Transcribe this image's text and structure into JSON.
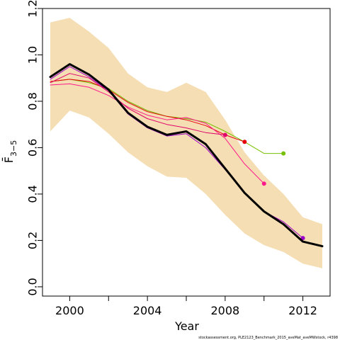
{
  "chart_data": {
    "type": "line",
    "xlabel": "Year",
    "ylabel": "F̄",
    "ylabel_sub": "3−5",
    "xlim": [
      1998.6,
      2013.4
    ],
    "ylim": [
      -0.04,
      1.2
    ],
    "x_ticks": [
      2000,
      2004,
      2008,
      2012
    ],
    "x_tick_labels": [
      "2000",
      "2004",
      "2008",
      "2012"
    ],
    "x_minor_ticks": [
      2002,
      2006,
      2010
    ],
    "y_ticks": [
      0.0,
      0.2,
      0.4,
      0.6,
      0.8,
      1.0,
      1.2
    ],
    "y_tick_labels": [
      "0.0",
      "0.2",
      "0.4",
      "0.6",
      "0.8",
      "1.0",
      "1.2"
    ],
    "confidence_band": {
      "color": "#f5deb3",
      "x": [
        1999,
        2000,
        2001,
        2002,
        2003,
        2004,
        2005,
        2006,
        2007,
        2008,
        2009,
        2010,
        2011,
        2012,
        2013
      ],
      "upper": [
        1.14,
        1.16,
        1.1,
        1.03,
        0.92,
        0.86,
        0.84,
        0.88,
        0.84,
        0.72,
        0.58,
        0.48,
        0.4,
        0.3,
        0.27
      ],
      "lower": [
        0.67,
        0.76,
        0.73,
        0.66,
        0.58,
        0.52,
        0.475,
        0.47,
        0.4,
        0.31,
        0.23,
        0.18,
        0.15,
        0.1,
        0.08
      ]
    },
    "series": [
      {
        "color": "#000000",
        "width": 3,
        "end_marker": false,
        "x": [
          1999,
          2000,
          2001,
          2002,
          2003,
          2004,
          2005,
          2006,
          2007,
          2008,
          2009,
          2010,
          2011,
          2012,
          2013
        ],
        "values": [
          0.905,
          0.96,
          0.915,
          0.85,
          0.75,
          0.69,
          0.655,
          0.67,
          0.615,
          0.51,
          0.405,
          0.325,
          0.27,
          0.195,
          0.175
        ]
      },
      {
        "color": "#76c000",
        "width": 1,
        "end_marker": true,
        "x": [
          1999,
          2000,
          2001,
          2002,
          2003,
          2004,
          2005,
          2006,
          2007,
          2008,
          2009,
          2010,
          2011
        ],
        "values": [
          0.885,
          0.895,
          0.88,
          0.855,
          0.8,
          0.76,
          0.735,
          0.725,
          0.71,
          0.67,
          0.625,
          0.575,
          0.575
        ]
      },
      {
        "color": "#e8000b",
        "width": 1,
        "end_marker": true,
        "x": [
          1999,
          2000,
          2001,
          2002,
          2003,
          2004,
          2005,
          2006,
          2007,
          2008,
          2009
        ],
        "values": [
          0.885,
          0.895,
          0.885,
          0.85,
          0.795,
          0.755,
          0.735,
          0.72,
          0.695,
          0.655,
          0.625
        ]
      },
      {
        "color": "#ff1a8c",
        "width": 1,
        "end_marker": true,
        "x": [
          1999,
          2000,
          2001,
          2002,
          2003,
          2004,
          2005,
          2006,
          2007,
          2008,
          2009,
          2010
        ],
        "values": [
          0.87,
          0.875,
          0.86,
          0.825,
          0.775,
          0.74,
          0.72,
          0.73,
          0.705,
          0.64,
          0.53,
          0.445
        ]
      },
      {
        "color": "#e0006a",
        "width": 1,
        "end_marker": true,
        "x": [
          1999,
          2000,
          2001,
          2002,
          2003,
          2004,
          2005,
          2006,
          2007,
          2008
        ],
        "values": [
          0.88,
          0.92,
          0.9,
          0.84,
          0.77,
          0.725,
          0.7,
          0.685,
          0.665,
          0.655
        ]
      },
      {
        "color": "#9b00c8",
        "width": 1,
        "end_marker": true,
        "x": [
          1999,
          2000,
          2001,
          2002,
          2003,
          2004,
          2005,
          2006,
          2007,
          2008,
          2009,
          2010,
          2011,
          2012
        ],
        "values": [
          0.895,
          0.95,
          0.905,
          0.845,
          0.745,
          0.685,
          0.65,
          0.66,
          0.6,
          0.505,
          0.405,
          0.325,
          0.28,
          0.21
        ]
      }
    ]
  },
  "footnote": "stockassessment.org, PLE2123_Benchmark_2015_aveMat_aveMWstock, r4398"
}
